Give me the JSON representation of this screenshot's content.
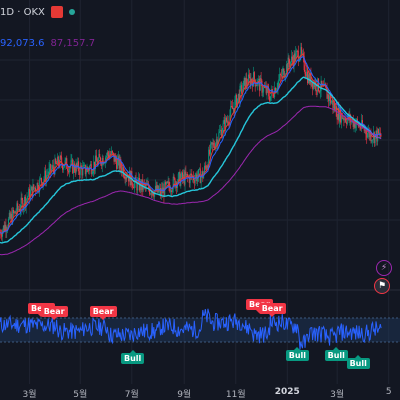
{
  "header": {
    "symbol_text": "1D · OKX"
  },
  "moving_averages": {
    "ma1_value": "92,073.6",
    "ma2_value": "87,157.7",
    "ma1_color": "#2962ff",
    "ma2_color": "#9c27b0"
  },
  "oscillator": {
    "labels": [
      {
        "text": "Bear",
        "kind": "bear",
        "day": 45,
        "value": 72
      },
      {
        "text": "Bear",
        "kind": "bear",
        "day": 60,
        "value": 66
      },
      {
        "text": "Bear",
        "kind": "bear",
        "day": 118,
        "value": 66
      },
      {
        "text": "Bull",
        "kind": "bull",
        "day": 155,
        "value": 18
      },
      {
        "text": "Bear",
        "kind": "bear",
        "day": 303,
        "value": 78
      },
      {
        "text": "Bear",
        "kind": "bear",
        "day": 318,
        "value": 72
      },
      {
        "text": "Bull",
        "kind": "bull",
        "day": 350,
        "value": 23
      },
      {
        "text": "Bull",
        "kind": "bull",
        "day": 396,
        "value": 23
      },
      {
        "text": "Bull",
        "kind": "bull",
        "day": 422,
        "value": 10
      }
    ]
  },
  "x_axis": {
    "ticks": [
      {
        "label": "3월",
        "day": 35,
        "bold": false
      },
      {
        "label": "5월",
        "day": 95,
        "bold": false
      },
      {
        "label": "7월",
        "day": 156,
        "bold": false
      },
      {
        "label": "9월",
        "day": 218,
        "bold": false
      },
      {
        "label": "11월",
        "day": 279,
        "bold": false
      },
      {
        "label": "2025",
        "day": 340,
        "bold": true
      },
      {
        "label": "3월",
        "day": 399,
        "bold": false
      },
      {
        "label": "5",
        "day": 460,
        "bold": false
      }
    ]
  },
  "colors": {
    "background": "#131722",
    "up_candle": "#089981",
    "down_candle": "#f23645",
    "ema_fast": "#e53935",
    "ema_slow": "#26c6da",
    "ema_long": "#9c27b0",
    "oscillator_line": "#2962ff",
    "band_fill": "#1e3a5f"
  },
  "icons": {
    "flag": "flag-icon",
    "lightning": "lightning-icon",
    "us_flag": "us-flag-icon"
  }
}
